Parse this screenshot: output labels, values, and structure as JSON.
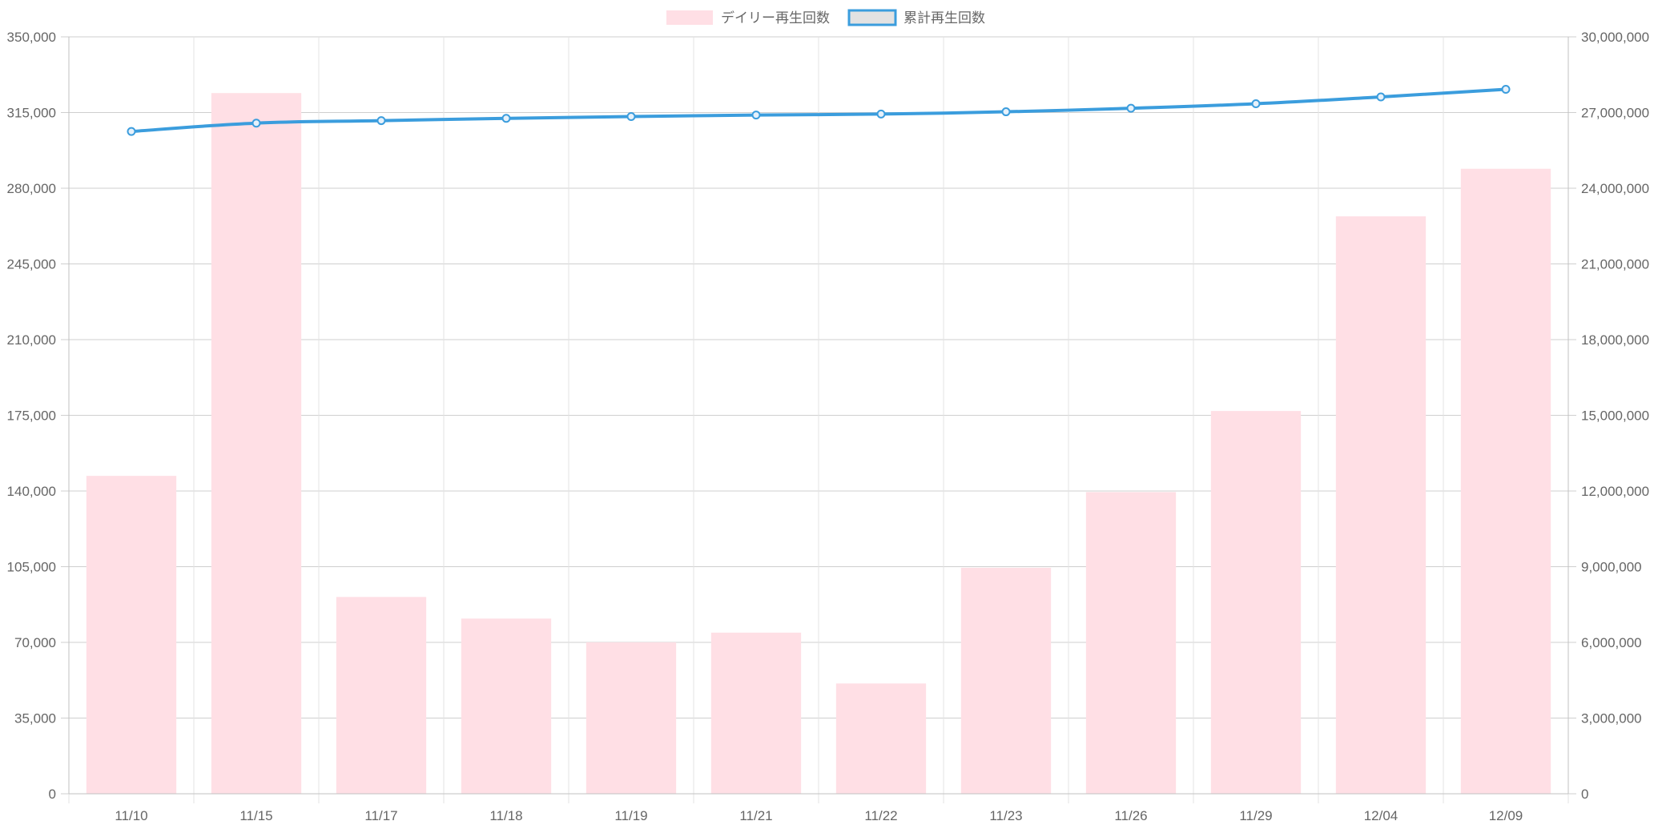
{
  "chart_data": {
    "type": "bar",
    "categories": [
      "11/10",
      "11/15",
      "11/17",
      "11/18",
      "11/19",
      "11/21",
      "11/22",
      "11/23",
      "11/26",
      "11/29",
      "12/04",
      "12/09"
    ],
    "series": [
      {
        "name": "デイリー再生回数",
        "type": "bar",
        "axis": "left",
        "color": "#ffdfe5",
        "values": [
          147000,
          324000,
          91000,
          81000,
          70000,
          74500,
          51000,
          104500,
          139500,
          177000,
          267000,
          289000
        ]
      },
      {
        "name": "累計再生回数",
        "type": "line",
        "axis": "right",
        "color": "#3b9ddd",
        "legend_fill": "#e2e2e2",
        "values": [
          26250000,
          26580000,
          26680000,
          26770000,
          26840000,
          26900000,
          26940000,
          27030000,
          27170000,
          27350000,
          27620000,
          27920000
        ]
      }
    ],
    "y_left": {
      "min": 0,
      "max": 350000,
      "ticks": [
        "0",
        "35,000",
        "70,000",
        "105,000",
        "140,000",
        "175,000",
        "210,000",
        "245,000",
        "280,000",
        "315,000",
        "350,000"
      ]
    },
    "y_right": {
      "min": 0,
      "max": 30000000,
      "ticks": [
        "0",
        "3,000,000",
        "6,000,000",
        "9,000,000",
        "12,000,000",
        "15,000,000",
        "18,000,000",
        "21,000,000",
        "24,000,000",
        "27,000,000",
        "30,000,000"
      ]
    },
    "title": "",
    "xlabel": "",
    "ylabel": "",
    "legend_position": "top-center",
    "grid": true
  }
}
